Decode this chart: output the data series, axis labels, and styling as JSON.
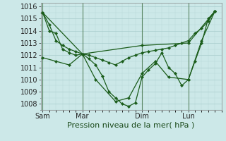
{
  "bg_color": "#cce8e8",
  "grid_major_color": "#a8cccc",
  "grid_minor_color": "#b8d8d8",
  "vline_color": "#336633",
  "line_color": "#1a5c1a",
  "marker_color": "#1a5c1a",
  "xlabel": "Pression niveau de la mer( hPa )",
  "xlabel_fontsize": 8,
  "tick_fontsize": 7,
  "ylim": [
    1007.5,
    1016.3
  ],
  "yticks": [
    1008,
    1009,
    1010,
    1011,
    1012,
    1013,
    1014,
    1015,
    1016
  ],
  "xtick_labels": [
    "Sam",
    "Mar",
    "Dim",
    "Lun"
  ],
  "xtick_positions": [
    0,
    6,
    15,
    22
  ],
  "vline_positions": [
    0,
    6,
    15,
    22
  ],
  "xlim": [
    -0.3,
    27
  ],
  "series": [
    {
      "x": [
        0,
        1,
        2,
        3,
        4,
        5,
        6,
        7,
        8,
        9,
        10,
        11,
        12,
        13,
        14,
        15,
        16,
        17,
        18,
        19,
        20,
        21,
        22,
        23,
        24,
        25,
        26
      ],
      "y": [
        1015.5,
        1014.0,
        1013.8,
        1012.5,
        1012.2,
        1012.0,
        1012.1,
        1011.7,
        1011.2,
        1010.3,
        1009.0,
        1008.5,
        1008.0,
        1007.8,
        1008.1,
        1010.2,
        1010.8,
        1011.3,
        1012.2,
        1011.0,
        1010.5,
        1009.5,
        1010.0,
        1011.5,
        1013.0,
        1015.0,
        1015.6
      ]
    },
    {
      "x": [
        0,
        2,
        4,
        6,
        8,
        11,
        13,
        15,
        17,
        19,
        22,
        24,
        26
      ],
      "y": [
        1011.8,
        1011.5,
        1011.2,
        1012.1,
        1010.0,
        1008.2,
        1008.5,
        1010.5,
        1011.5,
        1010.2,
        1010.0,
        1013.2,
        1015.6
      ]
    },
    {
      "x": [
        0,
        6,
        15,
        22,
        26
      ],
      "y": [
        1015.5,
        1012.1,
        1012.8,
        1013.0,
        1015.6
      ]
    },
    {
      "x": [
        0,
        1,
        2,
        3,
        4,
        5,
        6,
        7,
        8,
        9,
        10,
        11,
        12,
        13,
        14,
        15,
        16,
        17,
        18,
        19,
        20,
        21,
        22,
        23,
        24,
        25,
        26
      ],
      "y": [
        1015.5,
        1014.5,
        1013.2,
        1012.8,
        1012.5,
        1012.3,
        1012.1,
        1012.0,
        1011.8,
        1011.6,
        1011.4,
        1011.2,
        1011.5,
        1011.8,
        1012.0,
        1012.2,
        1012.3,
        1012.4,
        1012.5,
        1012.6,
        1012.8,
        1013.0,
        1013.2,
        1013.8,
        1014.2,
        1014.8,
        1015.6
      ]
    }
  ]
}
